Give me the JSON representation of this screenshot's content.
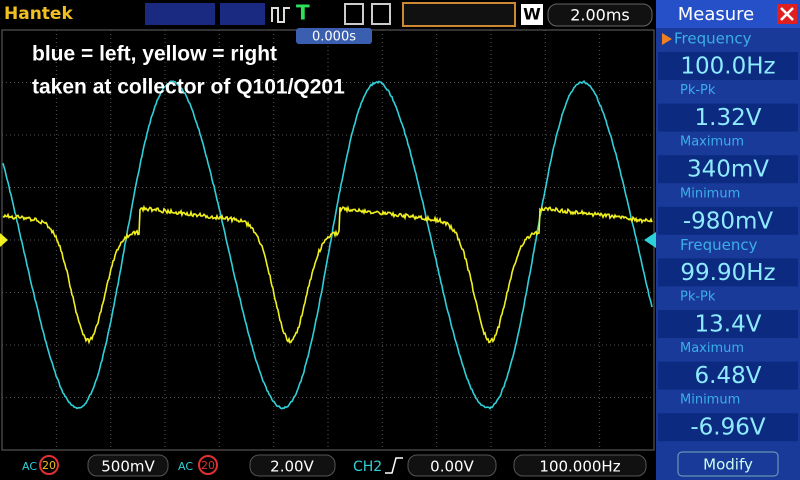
{
  "header": {
    "brand": "Hantek",
    "trigger_mode": "T",
    "window_label": "W",
    "timebase": "2.00ms",
    "trigger_position": "0.000s"
  },
  "annotations": [
    "blue = left, yellow = right",
    "taken at collector of Q101/Q201"
  ],
  "measure": {
    "title": "Measure",
    "items": [
      {
        "label": "Frequency",
        "value": "100.0Hz"
      },
      {
        "label": "Pk-Pk",
        "value": "1.32V"
      },
      {
        "label": "Maximum",
        "value": "340mV"
      },
      {
        "label": "Minimum",
        "value": "-980mV"
      },
      {
        "label": "Frequency",
        "value": "99.90Hz"
      },
      {
        "label": "Pk-Pk",
        "value": "13.4V"
      },
      {
        "label": "Maximum",
        "value": "6.48V"
      },
      {
        "label": "Minimum",
        "value": "-6.96V"
      }
    ],
    "button": "Modify"
  },
  "footer": {
    "ch1": {
      "coupling": "AC",
      "bandwidth": "20",
      "scale": "500mV"
    },
    "ch2": {
      "coupling": "AC",
      "bandwidth": "20",
      "scale": "2.00V"
    },
    "trigger": {
      "source": "CH2",
      "level": "0.00V"
    },
    "frequency": "100.000Hz"
  }
}
